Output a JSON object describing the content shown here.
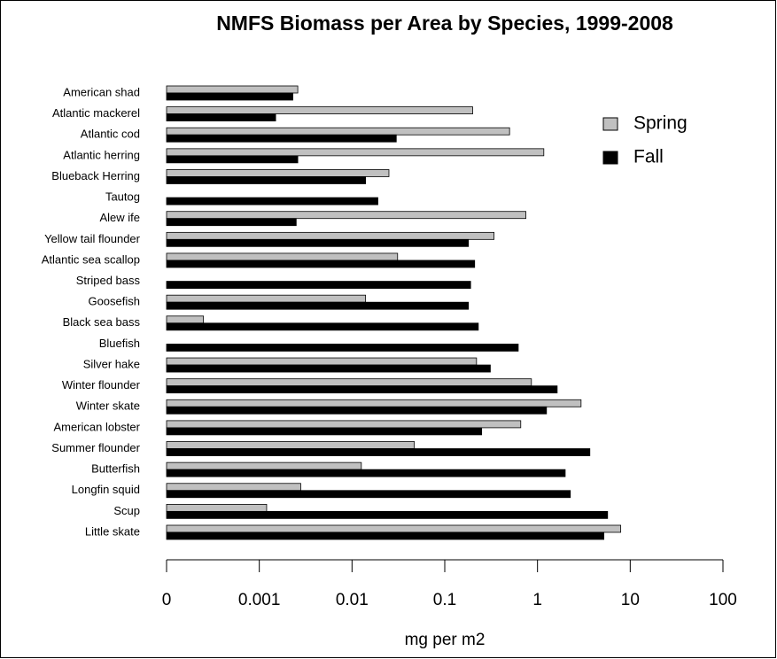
{
  "chart_data": {
    "type": "bar",
    "orientation": "horizontal",
    "title": "NMFS Biomass per Area by Species, 1999-2008",
    "x_label": "mg per m2",
    "log_scale": true,
    "legend_position": "upper right",
    "categories": [
      "American shad",
      "Atlantic mackerel",
      "Atlantic cod",
      "Atlantic herring",
      "Blueback Herring",
      "Tautog",
      "Alew ife",
      "Yellow tail flounder",
      "Atlantic sea scallop",
      "Striped bass",
      "Goosefish",
      "Black sea bass",
      "Bluefish",
      "Silver hake",
      "Winter flounder",
      "Winter skate",
      "American lobster",
      "Summer flounder",
      "Butterfish",
      "Longfin squid",
      "Scup",
      "Little skate"
    ],
    "series": [
      {
        "name": "Spring",
        "color": "#c0c0c0",
        "values": [
          0.0026,
          0.2,
          0.5,
          1.17,
          0.025,
          0.0001,
          0.75,
          0.34,
          0.031,
          0.0001,
          0.014,
          0.00025,
          0.0001,
          0.22,
          0.86,
          2.95,
          0.66,
          0.047,
          0.0126,
          0.0028,
          0.0012,
          7.9
        ]
      },
      {
        "name": "Fall",
        "color": "#000000",
        "values": [
          0.0023,
          0.0015,
          0.03,
          0.0026,
          0.014,
          0.019,
          0.0025,
          0.18,
          0.21,
          0.19,
          0.18,
          0.23,
          0.62,
          0.31,
          1.63,
          1.25,
          0.25,
          3.67,
          1.99,
          2.26,
          5.7,
          5.2
        ]
      }
    ],
    "xlim": [
      0.0001,
      100
    ],
    "xticks": [
      {
        "value": 0.0001,
        "label": "0"
      },
      0.001,
      0.01,
      0.1,
      1,
      10,
      100
    ]
  }
}
